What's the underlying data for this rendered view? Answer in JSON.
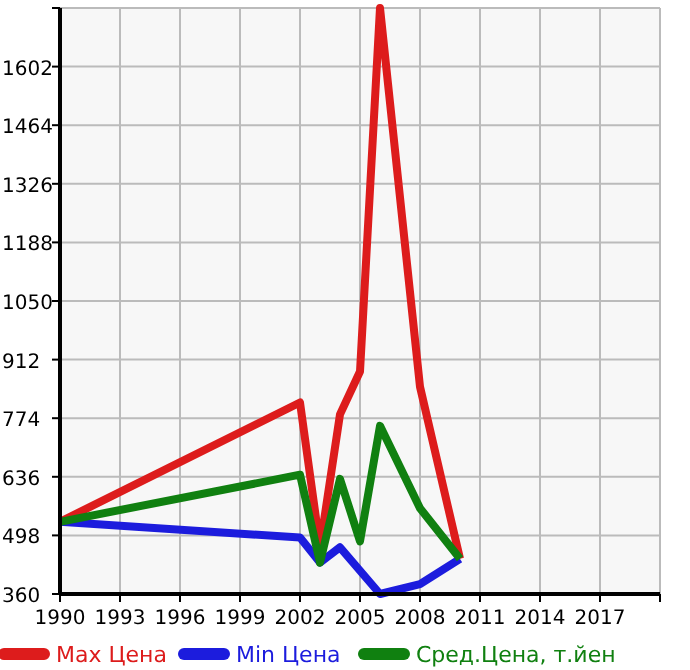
{
  "chart_data": {
    "type": "line",
    "x": [
      1990,
      2002,
      2003,
      2004,
      2005,
      2006,
      2008,
      2010
    ],
    "series": [
      {
        "name": "Max Цена",
        "color": "#dd1c1c",
        "values": [
          530,
          811,
          470,
          783,
          884,
          1740,
          848,
          443
        ]
      },
      {
        "name": "Min Цена",
        "color": "#1c1cdd",
        "x": [
          1990,
          2002,
          2003,
          2004,
          2006,
          2008,
          2010
        ],
        "values": [
          530,
          493,
          434,
          470,
          360,
          383,
          443
        ]
      },
      {
        "name": "Сред.Цена, т.йен",
        "color": "#108010",
        "values": [
          530,
          641,
          434,
          631,
          484,
          756,
          562,
          443
        ]
      }
    ],
    "xlim": [
      1990,
      2020
    ],
    "xticks": [
      1990,
      1993,
      1996,
      1999,
      2002,
      2005,
      2008,
      2011,
      2014,
      2017,
      {
        "value": 2020,
        "label": null
      }
    ],
    "ylim": [
      360,
      1740
    ],
    "yticks": [
      360,
      498,
      636,
      774,
      912,
      1050,
      1188,
      1326,
      1464,
      1602,
      {
        "value": 1740,
        "label": null
      }
    ],
    "grid": true,
    "legend": "bottom",
    "marker": "none",
    "line_style": "solid"
  }
}
